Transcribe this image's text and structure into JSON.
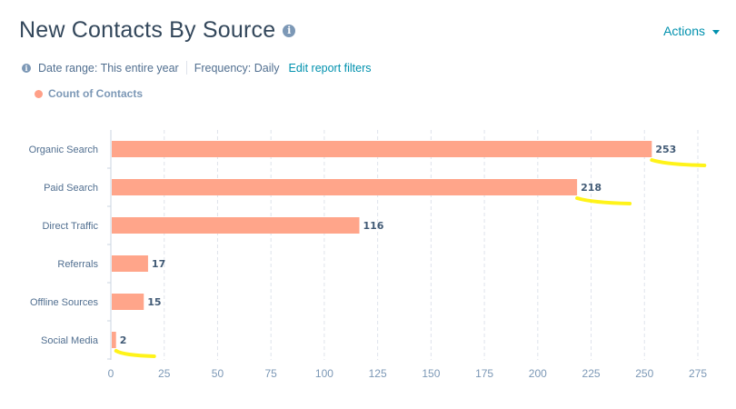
{
  "header": {
    "title": "New Contacts By Source",
    "title_info_icon": "info-icon",
    "actions_label": "Actions"
  },
  "filters": {
    "date_range": "Date range: This entire year",
    "frequency": "Frequency: Daily",
    "edit_link": "Edit report filters"
  },
  "colors": {
    "bar": "#ffa58a",
    "accent": "#0091ae",
    "text": "#33475b",
    "highlight": "#fff200"
  },
  "chart_data": {
    "type": "bar",
    "orientation": "horizontal",
    "categories": [
      "Organic Search",
      "Paid Search",
      "Direct Traffic",
      "Referrals",
      "Offline Sources",
      "Social Media"
    ],
    "series": [
      {
        "name": "Count of Contacts",
        "values": [
          253,
          218,
          116,
          17,
          15,
          2
        ]
      }
    ],
    "xlim": [
      0,
      275
    ],
    "xticks": [
      0,
      25,
      50,
      75,
      100,
      125,
      150,
      175,
      200,
      225,
      250,
      275
    ],
    "grid": "vertical dashed",
    "legend": "top-left",
    "highlighted_labels": [
      "Organic Search",
      "Paid Search",
      "Social Media"
    ]
  }
}
